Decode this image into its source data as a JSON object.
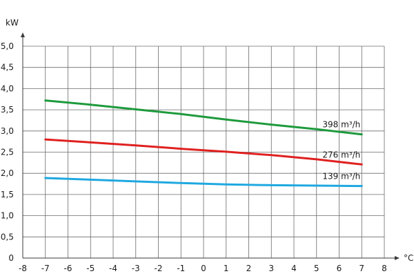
{
  "chart_data": {
    "type": "line",
    "x_unit": "°C",
    "y_unit": "kW",
    "xlim": [
      -8,
      8
    ],
    "ylim": [
      0,
      5
    ],
    "x_ticks": [
      -8,
      -7,
      -6,
      -5,
      -4,
      -3,
      -2,
      -1,
      0,
      1,
      2,
      3,
      4,
      5,
      6,
      7,
      8
    ],
    "x_tick_labels": [
      "-8",
      "-7",
      "-6",
      "-5",
      "-4",
      "-3",
      "-2",
      "-1",
      "0",
      "1",
      "2",
      "3",
      "4",
      "5",
      "6",
      "7",
      "8"
    ],
    "y_ticks": [
      0,
      0.5,
      1,
      1.5,
      2,
      2.5,
      3,
      3.5,
      4,
      4.5,
      5
    ],
    "y_tick_labels": [
      "0",
      "0,5",
      "1,0",
      "1,5",
      "2,0",
      "2,5",
      "3,0",
      "3,5",
      "4,0",
      "4,5",
      "5,0"
    ],
    "grid": true,
    "series": [
      {
        "name": "398 m³/h",
        "color": "#1e9a3c",
        "x": [
          -7,
          -5,
          -3,
          -1,
          1,
          3,
          5,
          7
        ],
        "y": [
          3.72,
          3.62,
          3.51,
          3.4,
          3.27,
          3.15,
          3.04,
          2.92
        ]
      },
      {
        "name": "276 m³/h",
        "color": "#e02020",
        "x": [
          -7,
          -5,
          -3,
          -1,
          1,
          3,
          5,
          7
        ],
        "y": [
          2.8,
          2.73,
          2.66,
          2.58,
          2.51,
          2.43,
          2.33,
          2.21
        ]
      },
      {
        "name": "139 m³/h",
        "color": "#1ea8e0",
        "x": [
          -7,
          -5,
          -3,
          -1,
          1,
          3,
          5,
          7
        ],
        "y": [
          1.89,
          1.85,
          1.81,
          1.77,
          1.74,
          1.72,
          1.71,
          1.7
        ]
      }
    ]
  }
}
